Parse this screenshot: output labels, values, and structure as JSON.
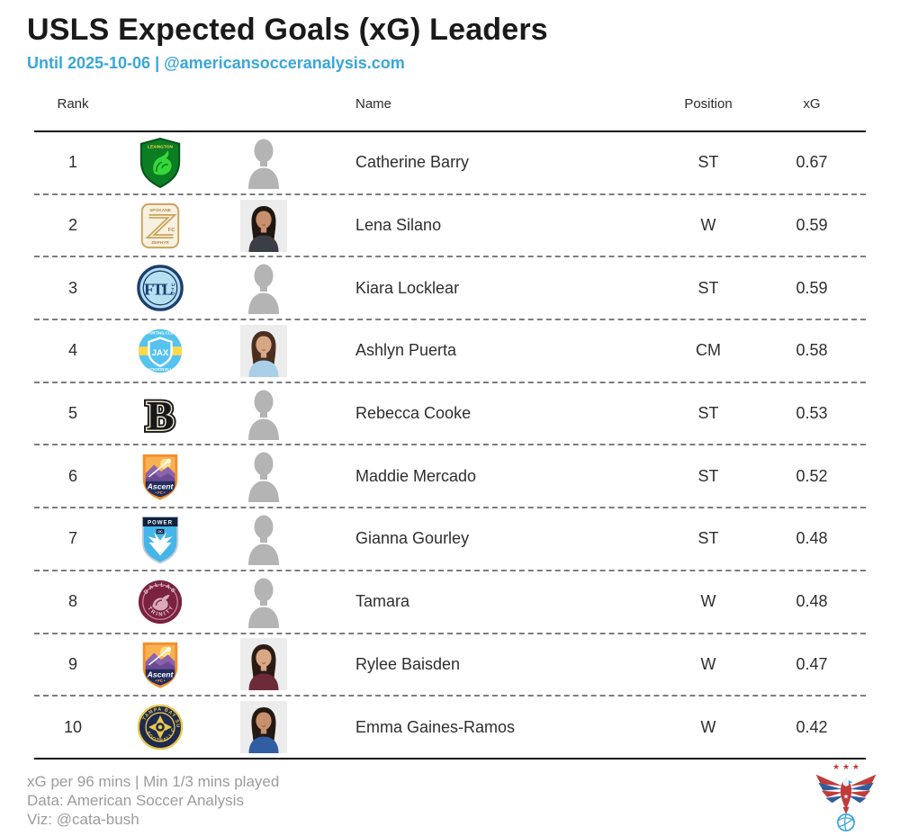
{
  "header": {
    "title": "USLS Expected Goals (xG) Leaders",
    "subtitle": "Until 2025-10-06 | @americansocceranalysis.com"
  },
  "table": {
    "columns": {
      "rank": "Rank",
      "name": "Name",
      "position": "Position",
      "xg": "xG"
    },
    "rows": [
      {
        "rank": "1",
        "name": "Catherine Barry",
        "position": "ST",
        "xg": "0.67",
        "team_icon": "lexington-sc-logo",
        "photo": {
          "type": "silhouette"
        }
      },
      {
        "rank": "2",
        "name": "Lena Silano",
        "position": "W",
        "xg": "0.59",
        "team_icon": "spokane-zephyr-fc-logo",
        "photo": {
          "type": "photo",
          "jersey": "#3a3f45",
          "hair": "#1f1712",
          "skin": "#c9906f"
        }
      },
      {
        "rank": "3",
        "name": "Kiara Locklear",
        "position": "ST",
        "xg": "0.59",
        "team_icon": "fort-lauderdale-united-logo",
        "photo": {
          "type": "silhouette"
        }
      },
      {
        "rank": "4",
        "name": "Ashlyn Puerta",
        "position": "CM",
        "xg": "0.58",
        "team_icon": "sporting-jax-logo",
        "photo": {
          "type": "photo",
          "jersey": "#a9cfe9",
          "hair": "#4a2e20",
          "skin": "#d8a886"
        }
      },
      {
        "rank": "5",
        "name": "Rebecca Cooke",
        "position": "ST",
        "xg": "0.53",
        "team_icon": "brooklyn-fc-logo",
        "photo": {
          "type": "silhouette"
        }
      },
      {
        "rank": "6",
        "name": "Maddie Mercado",
        "position": "ST",
        "xg": "0.52",
        "team_icon": "carolina-ascent-fc-logo",
        "photo": {
          "type": "silhouette"
        }
      },
      {
        "rank": "7",
        "name": "Gianna Gourley",
        "position": "ST",
        "xg": "0.48",
        "team_icon": "dc-power-fc-logo",
        "photo": {
          "type": "silhouette"
        }
      },
      {
        "rank": "8",
        "name": "Tamara",
        "position": "W",
        "xg": "0.48",
        "team_icon": "dallas-trinity-fc-logo",
        "photo": {
          "type": "silhouette"
        }
      },
      {
        "rank": "9",
        "name": "Rylee Baisden",
        "position": "W",
        "xg": "0.47",
        "team_icon": "carolina-ascent-fc-logo",
        "photo": {
          "type": "photo",
          "jersey": "#6d2b3a",
          "hair": "#2a1c14",
          "skin": "#d8a886"
        }
      },
      {
        "rank": "10",
        "name": "Emma Gaines-Ramos",
        "position": "W",
        "xg": "0.42",
        "team_icon": "tampa-bay-sun-fc-logo",
        "photo": {
          "type": "photo",
          "jersey": "#2f5ea3",
          "hair": "#241812",
          "skin": "#c9906f"
        }
      }
    ]
  },
  "footer": {
    "line1": "xG per 96 mins | Min 1/3 mins played",
    "line2": "Data: American Soccer Analysis",
    "line3": "Viz: @cata-bush",
    "logo_icon": "american-soccer-analysis-eagle-logo"
  },
  "colors": {
    "accent_blue": "#3aa6d9",
    "title_text": "#1a1a1a",
    "row_text": "#2e2e2e",
    "muted_text": "#9c9c9c",
    "divider_dashed": "#7d7d7d",
    "divider_solid": "#111111",
    "silhouette_gray": "#b4b4b4",
    "asa_red": "#c13b3b",
    "asa_blue": "#2d5e9e",
    "asa_ball_blue": "#3fa9dc"
  },
  "chart_data": {
    "type": "table",
    "title": "USLS Expected Goals (xG) Leaders",
    "subtitle": "Until 2025-10-06 | @americansocceranalysis.com",
    "columns": [
      "Rank",
      "Name",
      "Position",
      "xG"
    ],
    "rows": [
      [
        1,
        "Catherine Barry",
        "ST",
        0.67
      ],
      [
        2,
        "Lena Silano",
        "W",
        0.59
      ],
      [
        3,
        "Kiara Locklear",
        "ST",
        0.59
      ],
      [
        4,
        "Ashlyn Puerta",
        "CM",
        0.58
      ],
      [
        5,
        "Rebecca Cooke",
        "ST",
        0.53
      ],
      [
        6,
        "Maddie Mercado",
        "ST",
        0.52
      ],
      [
        7,
        "Gianna Gourley",
        "ST",
        0.48
      ],
      [
        8,
        "Tamara",
        "W",
        0.48
      ],
      [
        9,
        "Rylee Baisden",
        "W",
        0.47
      ],
      [
        10,
        "Emma Gaines-Ramos",
        "W",
        0.42
      ]
    ],
    "notes": [
      "xG per 96 mins | Min 1/3 mins played",
      "Data: American Soccer Analysis",
      "Viz: @cata-bush"
    ]
  }
}
